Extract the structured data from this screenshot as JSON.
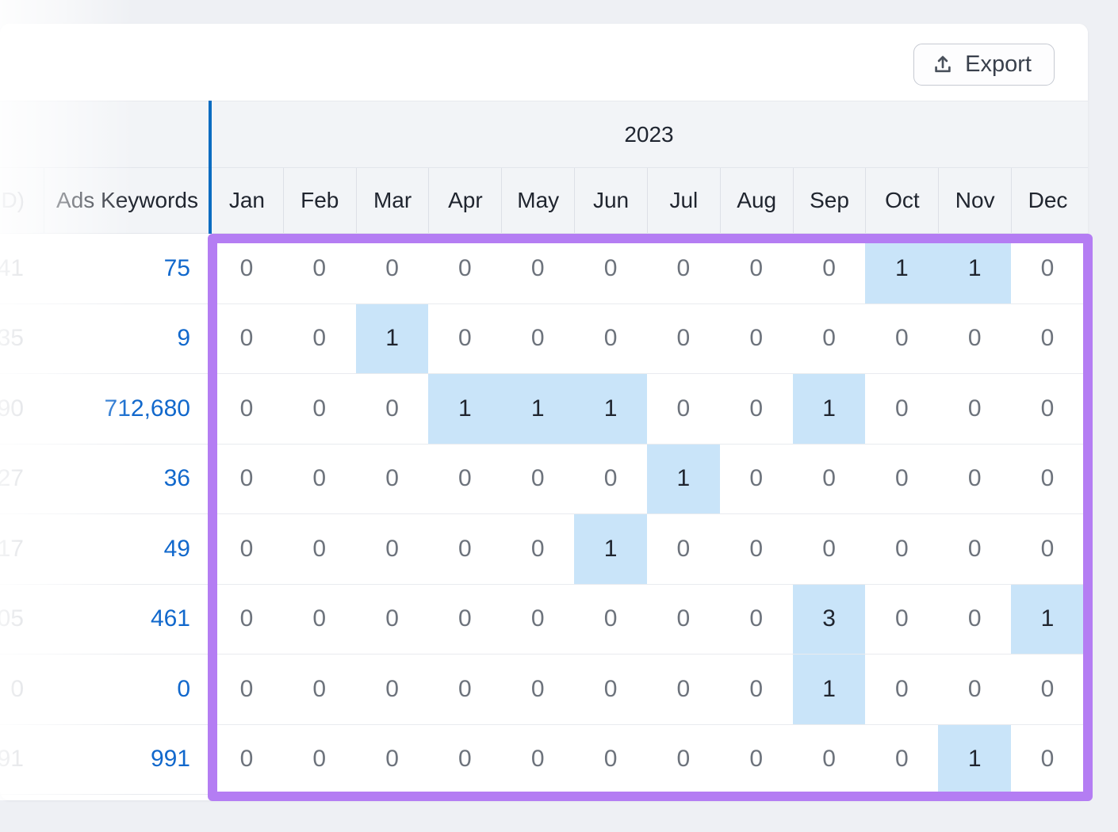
{
  "toolbar": {
    "export_label": "Export",
    "export_icon": "upload-icon"
  },
  "table": {
    "year_label": "2023",
    "left_partial_header": "D)",
    "ads_header": "Ads Keywords",
    "months": [
      "Jan",
      "Feb",
      "Mar",
      "Apr",
      "May",
      "Jun",
      "Jul",
      "Aug",
      "Sep",
      "Oct",
      "Nov",
      "Dec"
    ],
    "rows": [
      {
        "left_partial": "41",
        "ads_keywords": "75",
        "monthly_values": [
          "0",
          "0",
          "0",
          "0",
          "0",
          "0",
          "0",
          "0",
          "0",
          "1",
          "1",
          "0"
        ],
        "highlighted_months": [
          9,
          10
        ]
      },
      {
        "left_partial": "35",
        "ads_keywords": "9",
        "monthly_values": [
          "0",
          "0",
          "1",
          "0",
          "0",
          "0",
          "0",
          "0",
          "0",
          "0",
          "0",
          "0"
        ],
        "highlighted_months": [
          2
        ]
      },
      {
        "left_partial": "90",
        "ads_keywords": "712,680",
        "monthly_values": [
          "0",
          "0",
          "0",
          "1",
          "1",
          "1",
          "0",
          "0",
          "1",
          "0",
          "0",
          "0"
        ],
        "highlighted_months": [
          3,
          4,
          5,
          8
        ]
      },
      {
        "left_partial": "27",
        "ads_keywords": "36",
        "monthly_values": [
          "0",
          "0",
          "0",
          "0",
          "0",
          "0",
          "1",
          "0",
          "0",
          "0",
          "0",
          "0"
        ],
        "highlighted_months": [
          6
        ]
      },
      {
        "left_partial": "17",
        "ads_keywords": "49",
        "monthly_values": [
          "0",
          "0",
          "0",
          "0",
          "0",
          "1",
          "0",
          "0",
          "0",
          "0",
          "0",
          "0"
        ],
        "highlighted_months": [
          5
        ]
      },
      {
        "left_partial": "05",
        "ads_keywords": "461",
        "monthly_values": [
          "0",
          "0",
          "0",
          "0",
          "0",
          "0",
          "0",
          "0",
          "3",
          "0",
          "0",
          "1"
        ],
        "highlighted_months": [
          8,
          11
        ]
      },
      {
        "left_partial": "0",
        "ads_keywords": "0",
        "monthly_values": [
          "0",
          "0",
          "0",
          "0",
          "0",
          "0",
          "0",
          "0",
          "1",
          "0",
          "0",
          "0"
        ],
        "highlighted_months": [
          8
        ]
      },
      {
        "left_partial": "91",
        "ads_keywords": "991",
        "monthly_values": [
          "0",
          "0",
          "0",
          "0",
          "0",
          "0",
          "0",
          "0",
          "0",
          "0",
          "1",
          "0"
        ],
        "highlighted_months": [
          10
        ]
      }
    ]
  },
  "colors": {
    "link_blue": "#1168cc",
    "highlight_blue": "#c9e4f9",
    "annotation_purple": "#b47df3",
    "frozen_divider_blue": "#0b6cc1",
    "page_background": "#eef0f4"
  }
}
